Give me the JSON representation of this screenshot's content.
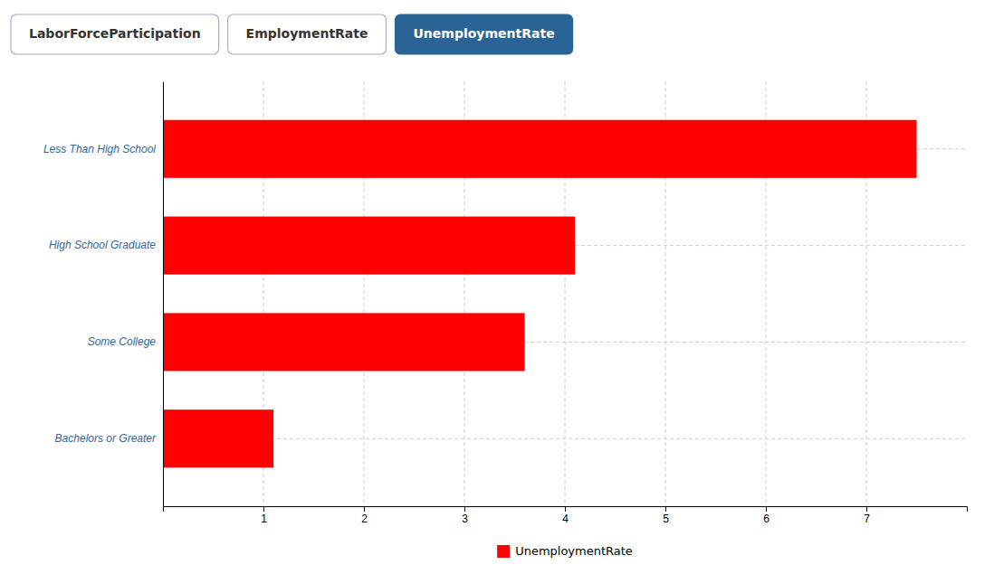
{
  "chart_data": {
    "type": "bar",
    "orientation": "horizontal",
    "categories": [
      "Less Than High School",
      "High School Graduate",
      "Some College",
      "Bachelors or Greater"
    ],
    "series": [
      {
        "name": "UnemploymentRate",
        "color": "#ff0000",
        "values": [
          7.5,
          4.1,
          3.6,
          1.1
        ]
      }
    ],
    "xlim": [
      0,
      8
    ],
    "xticks": [
      1,
      2,
      3,
      4,
      5,
      6,
      7
    ],
    "grid": true,
    "legend": "bottom",
    "annotations": [
      {
        "text": "LaborForceParticipation",
        "color": "#ffffff"
      },
      {
        "text": "EmploymentRate",
        "color": "#ffffff"
      },
      {
        "text": "UnemploymentRate",
        "color": "#2a6496"
      }
    ]
  }
}
